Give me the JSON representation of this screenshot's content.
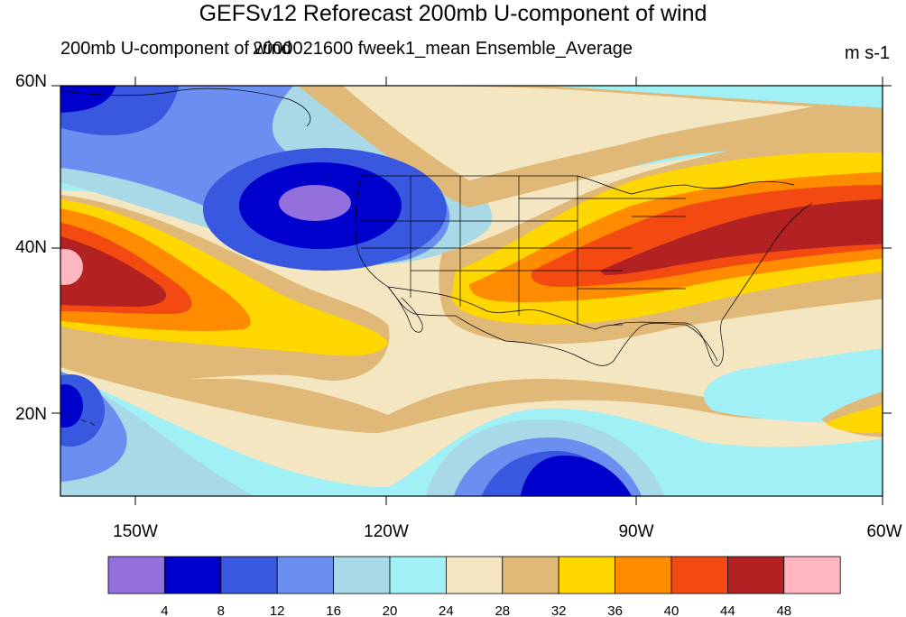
{
  "header": {
    "title": "GEFSv12 Reforecast 200mb U-component of wind",
    "left_subtitle": "200mb U-component of wind",
    "center_subtitle": "2000021600 fweek1_mean Ensemble_Average",
    "units": "m s-1"
  },
  "map": {
    "extent": {
      "lon": [
        -159,
        -60
      ],
      "lat": [
        10,
        60
      ]
    },
    "lat_labels": [
      {
        "value": 60,
        "text": "60N"
      },
      {
        "value": 40,
        "text": "40N"
      },
      {
        "value": 20,
        "text": "20N"
      }
    ],
    "lon_labels": [
      {
        "value": -150,
        "text": "150W"
      },
      {
        "value": -120,
        "text": "120W"
      },
      {
        "value": -90,
        "text": "90W"
      },
      {
        "value": -60,
        "text": "60W"
      }
    ]
  },
  "colorbar": {
    "colors": [
      "#9370db",
      "#0000cd",
      "#3858e0",
      "#6a8ff0",
      "#a9d8e6",
      "#a0f0f5",
      "#f5e6c2",
      "#e0b878",
      "#ffd700",
      "#ff8c00",
      "#f24a10",
      "#b22222",
      "#ffb6c1"
    ],
    "labels": [
      "4",
      "8",
      "12",
      "16",
      "20",
      "24",
      "28",
      "32",
      "36",
      "40",
      "44",
      "48"
    ]
  }
}
